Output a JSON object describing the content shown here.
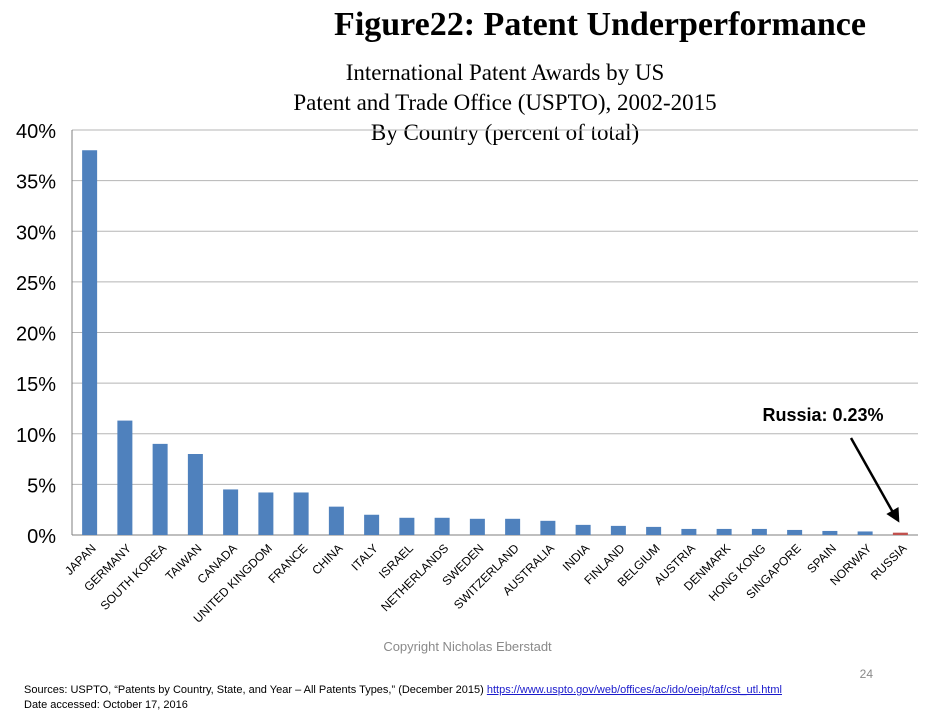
{
  "figure_title": "Figure22: Patent Underperformance",
  "subtitle_lines": [
    "International Patent Awards by US",
    "Patent and Trade Office (USPTO), 2002-2015",
    "By Country (percent of total)"
  ],
  "chart_data": {
    "type": "bar",
    "categories": [
      "JAPAN",
      "GERMANY",
      "SOUTH KOREA",
      "TAIWAN",
      "CANADA",
      "UNITED KINGDOM",
      "FRANCE",
      "CHINA",
      "ITALY",
      "ISRAEL",
      "NETHERLANDS",
      "SWEDEN",
      "SWITZERLAND",
      "AUSTRALIA",
      "INDIA",
      "FINLAND",
      "BELGIUM",
      "AUSTRIA",
      "DENMARK",
      "HONG KONG",
      "SINGAPORE",
      "SPAIN",
      "NORWAY",
      "RUSSIA"
    ],
    "values": [
      38.0,
      11.3,
      9.0,
      8.0,
      4.5,
      4.2,
      4.2,
      2.8,
      2.0,
      1.7,
      1.7,
      1.6,
      1.6,
      1.4,
      1.0,
      0.9,
      0.8,
      0.6,
      0.6,
      0.6,
      0.5,
      0.4,
      0.35,
      0.23
    ],
    "ylim": [
      0,
      40
    ],
    "yticks": [
      "0%",
      "5%",
      "10%",
      "15%",
      "20%",
      "25%",
      "30%",
      "35%",
      "40%"
    ],
    "grid": true,
    "bar_color": "#4f81bd",
    "highlight_color": "#c0504d",
    "highlight_category": "RUSSIA",
    "annotation": "Russia: 0.23%"
  },
  "copyright": "Copyright Nicholas Eberstadt",
  "page_number": "24",
  "sources_prefix": "Sources: USPTO, “Patents by Country, State, and Year – All Patents Types,” (December 2015) ",
  "sources_link": "https://www.uspto.gov/web/offices/ac/ido/oeip/taf/cst_utl.html",
  "date_accessed": "Date accessed: October 17, 2016"
}
